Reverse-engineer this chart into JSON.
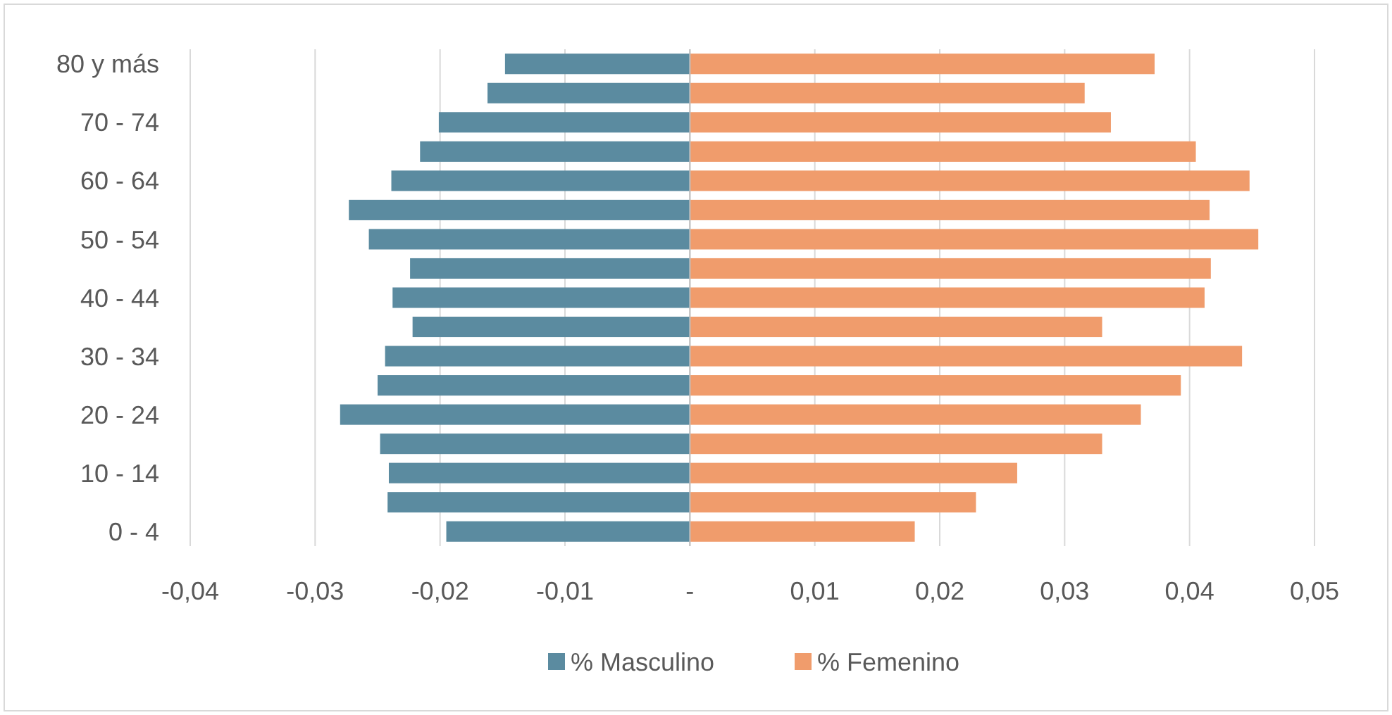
{
  "chart_data": {
    "type": "bar",
    "orientation": "horizontal",
    "categories": [
      "80 y más",
      null,
      "70 - 74",
      null,
      "60 - 64",
      null,
      "50 - 54",
      null,
      "40 - 44",
      null,
      "30 - 34",
      null,
      "20 - 24",
      null,
      "10 - 14",
      null,
      "0 - 4"
    ],
    "series": [
      {
        "name": "% Masculino",
        "color": "#5b8ba0",
        "values": [
          -0.0148,
          -0.0162,
          -0.0201,
          -0.0216,
          -0.0239,
          -0.0273,
          -0.0257,
          -0.0224,
          -0.0238,
          -0.0222,
          -0.0244,
          -0.025,
          -0.028,
          -0.0248,
          -0.0241,
          -0.0242,
          -0.0195
        ]
      },
      {
        "name": "% Femenino",
        "color": "#f09c6c",
        "values": [
          0.0372,
          0.0316,
          0.0337,
          0.0405,
          0.0448,
          0.0416,
          0.0455,
          0.0417,
          0.0412,
          0.033,
          0.0442,
          0.0393,
          0.0361,
          0.033,
          0.0262,
          0.0229,
          0.018
        ]
      }
    ],
    "xlim": [
      -0.04,
      0.05
    ],
    "xticks": [
      {
        "value": -0.04,
        "label": "-0,04"
      },
      {
        "value": -0.03,
        "label": "-0,03"
      },
      {
        "value": -0.02,
        "label": "-0,02"
      },
      {
        "value": -0.01,
        "label": "-0,01"
      },
      {
        "value": 0,
        "label": "-"
      },
      {
        "value": 0.01,
        "label": "0,01"
      },
      {
        "value": 0.02,
        "label": "0,02"
      },
      {
        "value": 0.03,
        "label": "0,03"
      },
      {
        "value": 0.04,
        "label": "0,04"
      },
      {
        "value": 0.05,
        "label": "0,05"
      }
    ],
    "grid": "x",
    "legend": "bottom",
    "stacked": true
  }
}
